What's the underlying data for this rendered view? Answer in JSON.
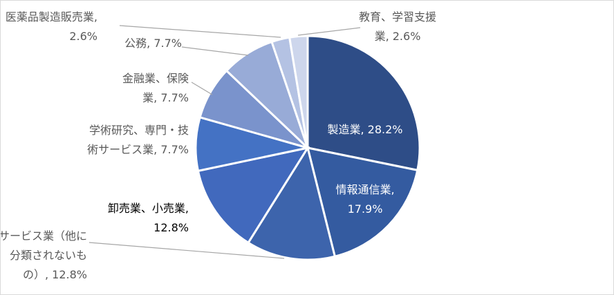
{
  "chart_data": {
    "type": "pie",
    "title": "",
    "categories": [
      "製造業",
      "情報通信業",
      "サービス業（他に分類されないもの）",
      "卸売業、小売業",
      "学術研究、専門・技術サービス業",
      "金融業、保険業",
      "公務",
      "医薬品製造販売業",
      "教育、学習支援業"
    ],
    "values": [
      28.2,
      17.9,
      12.8,
      12.8,
      7.7,
      7.7,
      7.7,
      2.6,
      2.6
    ],
    "unit": "%",
    "colors": [
      "#2e4d87",
      "#345ba0",
      "#3d64ac",
      "#4169bd",
      "#4472c4",
      "#7a93cc",
      "#98abd7",
      "#b4c2e3",
      "#cdd6ec"
    ],
    "start_angle_deg": 0,
    "direction": "clockwise",
    "labels": [
      {
        "lines": [
          "製造業, 28.2%"
        ]
      },
      {
        "lines": [
          "情報通信業,",
          "17.9%"
        ]
      },
      {
        "lines": [
          "サービス業（他に",
          "分類されないも",
          "の）, 12.8%"
        ]
      },
      {
        "lines": [
          "卸売業、小売業,",
          "12.8%"
        ]
      },
      {
        "lines": [
          "学術研究、専門・技",
          "術サービス業, 7.7%"
        ]
      },
      {
        "lines": [
          "金融業、保険",
          "業, 7.7%"
        ]
      },
      {
        "lines": [
          "公務, 7.7%"
        ]
      },
      {
        "lines": [
          "医薬品製造販売業,",
          "2.6%"
        ]
      },
      {
        "lines": [
          "教育、学習支援",
          "業, 2.6%"
        ]
      }
    ]
  }
}
